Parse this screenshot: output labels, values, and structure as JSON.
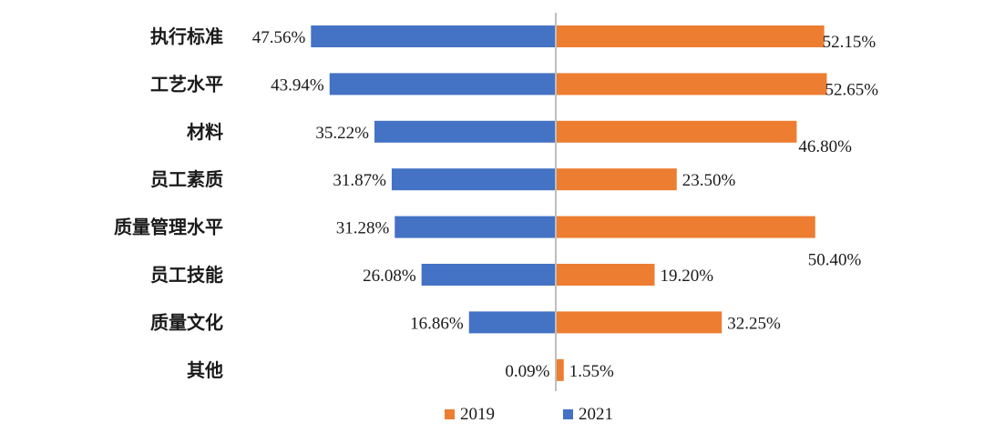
{
  "chart_data": {
    "type": "bar",
    "orientation": "horizontal-butterfly",
    "categories": [
      "执行标准",
      "工艺水平",
      "材料",
      "员工素质",
      "质量管理水平",
      "员工技能",
      "质量文化",
      "其他"
    ],
    "series": [
      {
        "name": "2021",
        "side": "left",
        "color": "#4472C4",
        "values": [
          47.56,
          43.94,
          35.22,
          31.87,
          31.28,
          26.08,
          16.86,
          0.09
        ],
        "labels": [
          "47.56%",
          "43.94%",
          "35.22%",
          "31.87%",
          "31.28%",
          "26.08%",
          "16.86%",
          "0.09%"
        ]
      },
      {
        "name": "2019",
        "side": "right",
        "color": "#ED7D31",
        "values": [
          52.15,
          52.65,
          46.8,
          23.5,
          50.4,
          19.2,
          32.25,
          1.55
        ],
        "labels": [
          "52.15%",
          "52.65%",
          "46.80%",
          "23.50%",
          "50.40%",
          "19.20%",
          "32.25%",
          "1.55%"
        ]
      }
    ],
    "legend": {
      "position": "bottom",
      "entries": [
        {
          "label": "2019",
          "color": "#ED7D31"
        },
        {
          "label": "2021",
          "color": "#4472C4"
        }
      ]
    },
    "axis_color": "#BFBFBF",
    "grid": false
  }
}
